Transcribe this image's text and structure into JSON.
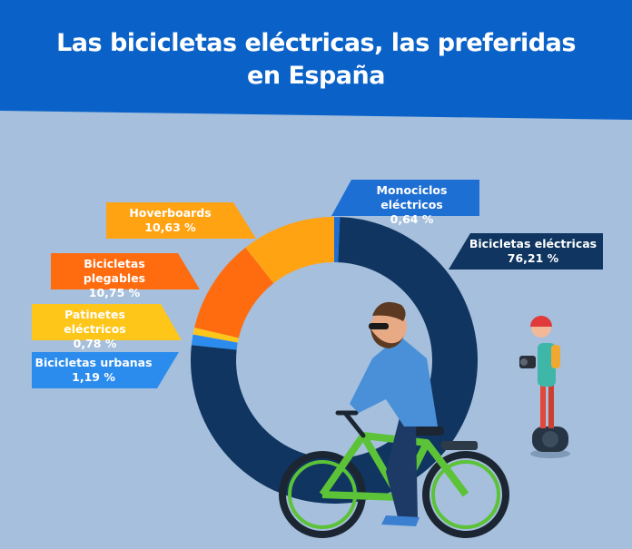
{
  "title_lines": [
    "Las bicicletas eléctricas, las preferidas",
    "en España"
  ],
  "colors": {
    "header_bg": "#0a62c8",
    "background": "#a5bfdc"
  },
  "chart_data": {
    "type": "pie",
    "subtype": "donut",
    "title": "Las bicicletas eléctricas, las preferidas en España",
    "unit": "%",
    "slices": [
      {
        "name": "Monociclos eléctricos",
        "value": 0.64,
        "label": "0,64 %",
        "color": "#1e6fd4"
      },
      {
        "name": "Bicicletas eléctricas",
        "value": 76.21,
        "label": "76,21 %",
        "color": "#0f3560"
      },
      {
        "name": "Bicicletas urbanas",
        "value": 1.19,
        "label": "1,19 %",
        "color": "#2b8cee"
      },
      {
        "name": "Patinetes eléctricos",
        "value": 0.78,
        "label": "0,78 %",
        "color": "#ffc61a"
      },
      {
        "name": "Bicicletas plegables",
        "value": 10.75,
        "label": "10,75 %",
        "color": "#ff6b0f"
      },
      {
        "name": "Hoverboards",
        "value": 10.63,
        "label": "10,63 %",
        "color": "#ffa313"
      }
    ]
  },
  "illustrations": [
    "cyclist-figure",
    "hoverboard-rider-figure"
  ]
}
